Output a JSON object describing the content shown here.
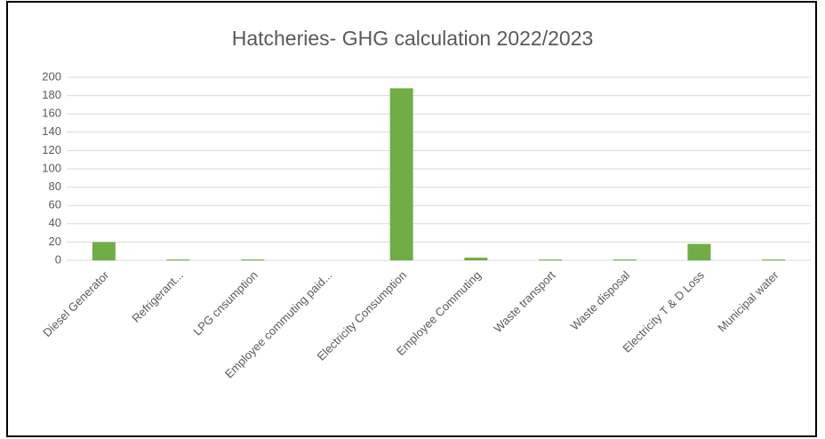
{
  "chart_data": {
    "type": "bar",
    "title": "Hatcheries- GHG calculation 2022/2023",
    "categories": [
      "Diesel Generator",
      "Refrigerant...",
      "LPG cnsumption",
      "Employee commuting paid...",
      "Electricity Consumption",
      "Employee Commuting",
      "Waste transport",
      "Waste disposal",
      "Electricity T & D Loss",
      "Municipal water"
    ],
    "values": [
      20,
      1,
      1,
      0,
      188,
      3,
      1,
      1,
      18,
      1
    ],
    "color": "#70ad47",
    "ylim": [
      0,
      200
    ],
    "yticks": [
      0,
      20,
      40,
      60,
      80,
      100,
      120,
      140,
      160,
      180,
      200
    ],
    "grid": true
  }
}
